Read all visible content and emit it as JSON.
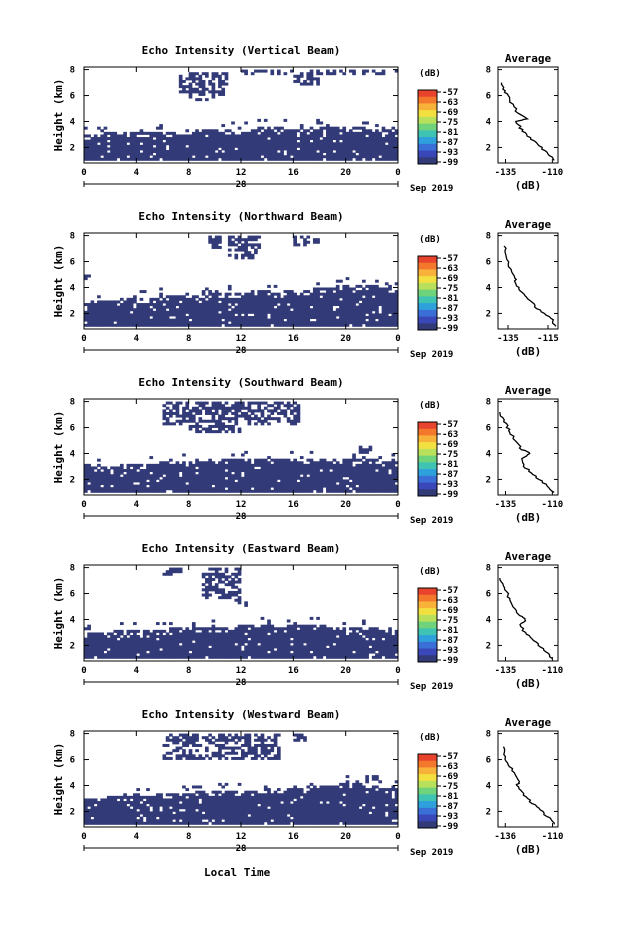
{
  "figure": {
    "shared_xlabel": "Local Time",
    "date_label": "Sep 2019",
    "colorbar_unit": "(dB)",
    "colorbar_levels": [
      "-57",
      "-63",
      "-69",
      "-75",
      "-81",
      "-87",
      "-93",
      "-99"
    ],
    "colorbar_colors": [
      "#e8432d",
      "#f3782c",
      "#f8b23a",
      "#f2e040",
      "#b9e05a",
      "#6fd37b",
      "#3fc4b4",
      "#2ea1dc",
      "#3b6fd8",
      "#3a47b8",
      "#323a78"
    ],
    "echo_color": "#323a78",
    "avg_title": "Average",
    "avg_xlabel": "(dB)"
  },
  "chart_data": [
    {
      "type": "heatmap",
      "title": "Echo Intensity (Vertical Beam)",
      "xlabel": "Local Time",
      "ylabel": "Height (km)",
      "x_ticks": [
        "0",
        "4",
        "8",
        "12",
        "16",
        "20",
        "0"
      ],
      "x_day_label": "28",
      "xlim": [
        0,
        24
      ],
      "y_ticks": [
        "2",
        "4",
        "6",
        "8"
      ],
      "ylim": [
        0.8,
        8.2
      ],
      "layer_base_km": 1.0,
      "layer_top_km": [
        3.0,
        3.0,
        3.1,
        3.0,
        3.1,
        3.1,
        3.2,
        3.2,
        3.3,
        3.3,
        3.4,
        3.4,
        3.4,
        3.5,
        3.5,
        3.5,
        3.4,
        3.5,
        3.5,
        3.5,
        3.4,
        3.5,
        3.4,
        3.4,
        3.5
      ],
      "upper_echo": [
        {
          "t0": 7.2,
          "t1": 11.0,
          "h0": 6.0,
          "h1": 7.8
        },
        {
          "t0": 8.0,
          "t1": 10.0,
          "h0": 5.5,
          "h1": 6.5
        },
        {
          "t0": 12.0,
          "t1": 24.0,
          "h0": 7.5,
          "h1": 8.0
        },
        {
          "t0": 16.0,
          "t1": 18.0,
          "h0": 6.8,
          "h1": 7.6
        }
      ],
      "avg_profile": {
        "xlim": [
          -139,
          -107
        ],
        "x_ticks": [
          "-135",
          "-110"
        ],
        "y_ticks": [
          "2",
          "4",
          "6",
          "8"
        ],
        "ylim": [
          0.8,
          8.2
        ],
        "db": [
          -109,
          -112,
          -116,
          -120,
          -124,
          -127,
          -129,
          -124,
          -129,
          -132,
          -134,
          -136,
          -137
        ],
        "height_km": [
          1.0,
          1.5,
          2.0,
          2.5,
          3.0,
          3.5,
          4.0,
          4.2,
          4.8,
          5.5,
          6.0,
          6.5,
          7.0
        ]
      }
    },
    {
      "type": "heatmap",
      "title": "Echo Intensity (Northward Beam)",
      "xlabel": "Local Time",
      "ylabel": "Height (km)",
      "x_ticks": [
        "0",
        "4",
        "8",
        "12",
        "16",
        "20",
        "0"
      ],
      "x_day_label": "28",
      "xlim": [
        0,
        24
      ],
      "y_ticks": [
        "2",
        "4",
        "6",
        "8"
      ],
      "ylim": [
        0.8,
        8.2
      ],
      "layer_base_km": 1.0,
      "layer_top_km": [
        2.9,
        3.0,
        3.0,
        3.1,
        3.1,
        3.2,
        3.3,
        3.4,
        3.5,
        3.5,
        3.6,
        3.6,
        3.6,
        3.7,
        3.7,
        3.7,
        3.8,
        3.8,
        3.9,
        4.0,
        4.1,
        4.1,
        4.2,
        4.0,
        3.8
      ],
      "upper_echo": [
        {
          "t0": 9.5,
          "t1": 10.5,
          "h0": 7.0,
          "h1": 8.0
        },
        {
          "t0": 11.0,
          "t1": 13.5,
          "h0": 6.2,
          "h1": 8.0
        },
        {
          "t0": 16.0,
          "t1": 18.0,
          "h0": 7.2,
          "h1": 8.0
        },
        {
          "t0": 0.0,
          "t1": 0.3,
          "h0": 4.6,
          "h1": 4.9
        }
      ],
      "avg_profile": {
        "xlim": [
          -140,
          -110
        ],
        "x_ticks": [
          "-135",
          "-115"
        ],
        "y_ticks": [
          "2",
          "4",
          "6",
          "8"
        ],
        "ylim": [
          0.8,
          8.2
        ],
        "db": [
          -111,
          -113,
          -117,
          -121,
          -124,
          -127,
          -130,
          -131,
          -133,
          -135,
          -136,
          -137
        ],
        "height_km": [
          1.0,
          1.5,
          2.0,
          2.5,
          3.0,
          3.5,
          4.0,
          4.5,
          5.0,
          5.8,
          6.5,
          7.2
        ]
      }
    },
    {
      "type": "heatmap",
      "title": "Echo Intensity (Southward Beam)",
      "xlabel": "Local Time",
      "ylabel": "Height (km)",
      "x_ticks": [
        "0",
        "4",
        "8",
        "12",
        "16",
        "20",
        "0"
      ],
      "x_day_label": "28",
      "xlim": [
        0,
        24
      ],
      "y_ticks": [
        "2",
        "4",
        "6",
        "8"
      ],
      "ylim": [
        0.8,
        8.2
      ],
      "layer_base_km": 1.0,
      "layer_top_km": [
        3.1,
        3.0,
        3.0,
        3.0,
        3.1,
        3.2,
        3.3,
        3.4,
        3.4,
        3.5,
        3.5,
        3.5,
        3.5,
        3.6,
        3.6,
        3.5,
        3.5,
        3.5,
        3.6,
        3.5,
        3.5,
        3.5,
        3.6,
        3.4,
        3.3
      ],
      "upper_echo": [
        {
          "t0": 6.0,
          "t1": 16.5,
          "h0": 6.2,
          "h1": 8.0
        },
        {
          "t0": 8.0,
          "t1": 12.0,
          "h0": 5.6,
          "h1": 6.4
        },
        {
          "t0": 21.0,
          "t1": 22.0,
          "h0": 4.0,
          "h1": 4.5
        }
      ],
      "avg_profile": {
        "xlim": [
          -139,
          -107
        ],
        "x_ticks": [
          "-135",
          "-110"
        ],
        "y_ticks": [
          "2",
          "4",
          "6",
          "8"
        ],
        "ylim": [
          0.8,
          8.2
        ],
        "db": [
          -109,
          -113,
          -117,
          -121,
          -125,
          -127,
          -122,
          -126,
          -129,
          -132,
          -134,
          -136,
          -138
        ],
        "height_km": [
          1.0,
          1.5,
          2.0,
          2.5,
          3.0,
          3.6,
          4.0,
          4.3,
          4.8,
          5.5,
          6.0,
          6.6,
          7.2
        ]
      }
    },
    {
      "type": "heatmap",
      "title": "Echo Intensity (Eastward Beam)",
      "xlabel": "Local Time",
      "ylabel": "Height (km)",
      "x_ticks": [
        "0",
        "4",
        "8",
        "12",
        "16",
        "20",
        "0"
      ],
      "x_day_label": "28",
      "xlim": [
        0,
        24
      ],
      "y_ticks": [
        "2",
        "4",
        "6",
        "8"
      ],
      "ylim": [
        0.8,
        8.2
      ],
      "layer_base_km": 1.0,
      "layer_top_km": [
        3.0,
        3.0,
        3.0,
        3.1,
        3.1,
        3.2,
        3.2,
        3.3,
        3.3,
        3.4,
        3.4,
        3.4,
        3.5,
        3.5,
        3.5,
        3.4,
        3.5,
        3.5,
        3.5,
        3.4,
        3.4,
        3.3,
        3.3,
        3.2,
        3.1
      ],
      "upper_echo": [
        {
          "t0": 9.0,
          "t1": 12.0,
          "h0": 5.5,
          "h1": 8.0
        },
        {
          "t0": 6.0,
          "t1": 7.5,
          "h0": 7.4,
          "h1": 8.0
        },
        {
          "t0": 11.5,
          "t1": 12.5,
          "h0": 5.0,
          "h1": 5.6
        }
      ],
      "avg_profile": {
        "xlim": [
          -139,
          -107
        ],
        "x_ticks": [
          "-135",
          "-110"
        ],
        "y_ticks": [
          "2",
          "4",
          "6",
          "8"
        ],
        "ylim": [
          0.8,
          8.2
        ],
        "db": [
          -110,
          -113,
          -117,
          -121,
          -125,
          -127,
          -124,
          -127,
          -130,
          -133,
          -134,
          -136,
          -138
        ],
        "height_km": [
          1.0,
          1.5,
          2.0,
          2.5,
          3.0,
          3.6,
          4.0,
          4.3,
          4.8,
          5.5,
          6.0,
          6.6,
          7.2
        ]
      }
    },
    {
      "type": "heatmap",
      "title": "Echo Intensity (Westward Beam)",
      "xlabel": "Local Time",
      "ylabel": "Height (km)",
      "x_ticks": [
        "0",
        "4",
        "8",
        "12",
        "16",
        "20",
        "0"
      ],
      "x_day_label": "28",
      "xlim": [
        0,
        24
      ],
      "y_ticks": [
        "2",
        "4",
        "6",
        "8"
      ],
      "ylim": [
        0.8,
        8.2
      ],
      "layer_base_km": 1.0,
      "layer_top_km": [
        3.0,
        3.0,
        3.1,
        3.1,
        3.2,
        3.2,
        3.3,
        3.4,
        3.4,
        3.5,
        3.5,
        3.5,
        3.6,
        3.6,
        3.7,
        3.7,
        3.7,
        3.8,
        3.9,
        4.0,
        4.1,
        4.2,
        4.0,
        3.8,
        3.7
      ],
      "upper_echo": [
        {
          "t0": 6.0,
          "t1": 15.0,
          "h0": 6.0,
          "h1": 8.0
        },
        {
          "t0": 16.0,
          "t1": 17.0,
          "h0": 7.4,
          "h1": 8.0
        },
        {
          "t0": 21.5,
          "t1": 22.5,
          "h0": 4.4,
          "h1": 4.8
        }
      ],
      "avg_profile": {
        "xlim": [
          -140,
          -107
        ],
        "x_ticks": [
          "-136",
          "-110"
        ],
        "y_ticks": [
          "2",
          "4",
          "6",
          "8"
        ],
        "ylim": [
          0.8,
          8.2
        ],
        "db": [
          -109,
          -112,
          -116,
          -120,
          -124,
          -127,
          -130,
          -128,
          -131,
          -134,
          -136,
          -137
        ],
        "height_km": [
          1.0,
          1.5,
          2.0,
          2.5,
          3.0,
          3.5,
          4.0,
          4.3,
          5.0,
          5.6,
          6.2,
          7.0
        ]
      }
    }
  ]
}
